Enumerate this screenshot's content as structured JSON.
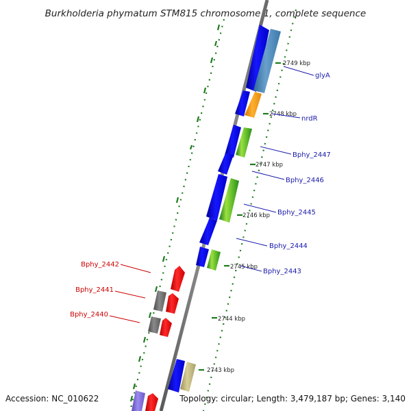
{
  "title": "Burkholderia phymatum STM815 chromosome 1, complete sequence",
  "accession": "Accession: NC_010622",
  "topology": "Topology: circular; Length: 3,479,187 bp; Genes: 3,140",
  "colors": {
    "backbone": "#808080",
    "forward_label": "#1a1aaa",
    "reverse_label": "#cc0000",
    "tick": "#1d7a1d",
    "cds_forward": "#0a0aee",
    "cds_reverse": "#ee1111",
    "cog_blue": "#4a86b8",
    "cog_orange": "#f39a1e",
    "cog_green": "#7dcf2a",
    "cog_gray": "#6e6e6e",
    "cog_khaki": "#bdb276",
    "cog_purple": "#7a68d6"
  },
  "kbp_markers": [
    "2749 kbp",
    "2748 kbp",
    "2747 kbp",
    "2746 kbp",
    "2745 kbp",
    "2744 kbp",
    "2743 kbp"
  ],
  "forward_genes": [
    "glyA",
    "nrdR",
    "Bphy_2447",
    "Bphy_2446",
    "Bphy_2445",
    "Bphy_2444",
    "Bphy_2443"
  ],
  "reverse_genes": [
    "Bphy_2442",
    "Bphy_2441",
    "Bphy_2440"
  ]
}
